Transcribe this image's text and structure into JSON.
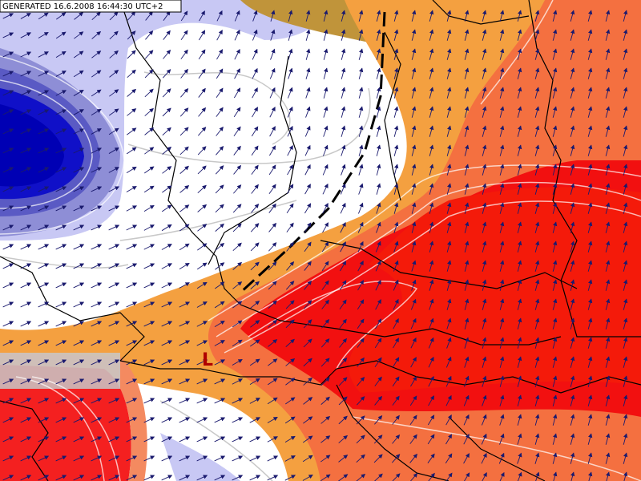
{
  "header": {
    "generated": "GENERATED 16.6.2008 16:44:30 UTC+2"
  },
  "map": {
    "pressure_label": "L"
  }
}
